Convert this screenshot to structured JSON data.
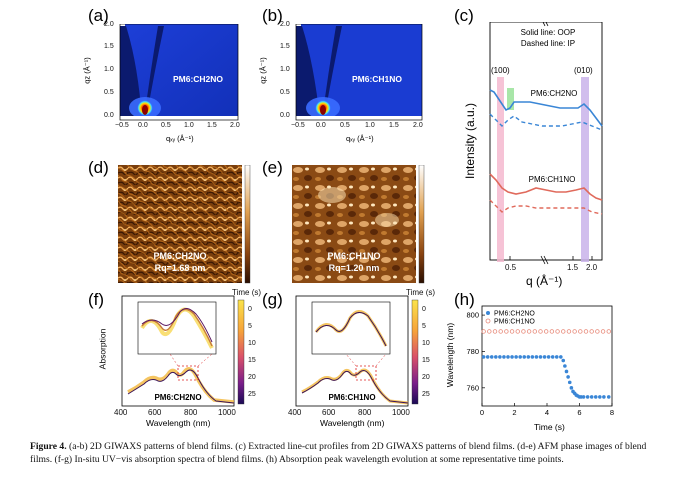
{
  "labels": {
    "a": "(a)",
    "b": "(b)",
    "c": "(c)",
    "d": "(d)",
    "e": "(e)",
    "f": "(f)",
    "g": "(g)",
    "h": "(h)"
  },
  "giwaxs": {
    "a_title": "PM6:CH2NO",
    "b_title": "PM6:CH1NO",
    "xlabel": "qₓᵧ (Å⁻¹)",
    "ylabel": "qᴢ (Å⁻¹)",
    "xticks": [
      "−0.5",
      "0.0",
      "0.5",
      "1.0",
      "1.5",
      "2.0"
    ],
    "yticks": [
      "2.0",
      "1.5",
      "1.0",
      "0.5",
      "0.0"
    ]
  },
  "panel_c": {
    "legend_solid": "Solid line: OOP",
    "legend_dashed": "Dashed line: IP",
    "peak_100": "(100)",
    "peak_010": "(010)",
    "label_top": "PM6:CH2NO",
    "label_bottom": "PM6:CH1NO",
    "ylabel": "Intensity (a.u.)",
    "xlabel": "q (Å⁻¹)",
    "xticks": [
      "0.5",
      "1.5",
      "2.0"
    ]
  },
  "afm": {
    "d_name": "PM6:CH2NO",
    "d_rq": "Rq=1.68 nm",
    "e_name": "PM6:CH1NO",
    "e_rq": "Rq=1.20 nm"
  },
  "uvvis": {
    "f_name": "PM6:CH2NO",
    "g_name": "PM6:CH1NO",
    "ylabel": "Absorption",
    "xlabel": "Wavelength (nm)",
    "xticks": [
      "400",
      "600",
      "800",
      "1000"
    ],
    "cbar_title": "Time (s)",
    "cbar_ticks": [
      "0",
      "5",
      "10",
      "15",
      "20",
      "25"
    ]
  },
  "chart_data": {
    "type": "scatter",
    "title": "",
    "xlabel": "Time (s)",
    "ylabel": "Wavelength (nm)",
    "xlim": [
      0,
      8
    ],
    "ylim": [
      750,
      805
    ],
    "xticks": [
      "0",
      "2",
      "4",
      "6",
      "8"
    ],
    "yticks": [
      "760",
      "780",
      "800"
    ],
    "legend_position": "top-left",
    "series": [
      {
        "name": "PM6:CH2NO",
        "color": "#3a86d6",
        "x": [
          0.1,
          0.35,
          0.6,
          0.85,
          1.1,
          1.35,
          1.6,
          1.85,
          2.1,
          2.35,
          2.6,
          2.85,
          3.1,
          3.35,
          3.6,
          3.85,
          4.1,
          4.35,
          4.6,
          4.85,
          5.0,
          5.1,
          5.2,
          5.3,
          5.4,
          5.5,
          5.6,
          5.7,
          5.8,
          5.9,
          6.0,
          6.1,
          6.25,
          6.5,
          6.75,
          7.0,
          7.25,
          7.5,
          7.8
        ],
        "y": [
          777,
          777,
          777,
          777,
          777,
          777,
          777,
          777,
          777,
          777,
          777,
          777,
          777,
          777,
          777,
          777,
          777,
          777,
          777,
          777,
          775,
          772,
          769,
          766,
          763,
          760,
          758,
          757,
          756,
          755.5,
          755,
          755,
          755,
          755,
          755,
          755,
          755,
          755,
          755
        ]
      },
      {
        "name": "PM6:CH1NO",
        "color": "#e88a7a",
        "x": [
          0.1,
          0.45,
          0.8,
          1.15,
          1.5,
          1.85,
          2.2,
          2.55,
          2.9,
          3.25,
          3.6,
          3.95,
          4.3,
          4.65,
          5.0,
          5.35,
          5.7,
          6.05,
          6.4,
          6.75,
          7.1,
          7.45,
          7.8
        ],
        "y": [
          791,
          791,
          791,
          791,
          791,
          791,
          791,
          791,
          791,
          791,
          791,
          791,
          791,
          791,
          791,
          791,
          791,
          791,
          791,
          791,
          791,
          791,
          791
        ]
      }
    ]
  },
  "caption": {
    "fig": "Figure 4.",
    "text": " (a-b) 2D GIWAXS patterns of blend films. (c) Extracted line-cut profiles from 2D GIWAXS patterns of blend films. (d-e) AFM phase images of blend films. (f-g) In-situ UV−vis absorption spectra of blend films. (h) Absorption peak wavelength evolution at some representative time points."
  },
  "colors": {
    "blue": "#3a86d6",
    "red": "#e06a5c",
    "pink": "#f5b8cf",
    "violet": "#c9b3ea",
    "green": "#9fe39f"
  }
}
